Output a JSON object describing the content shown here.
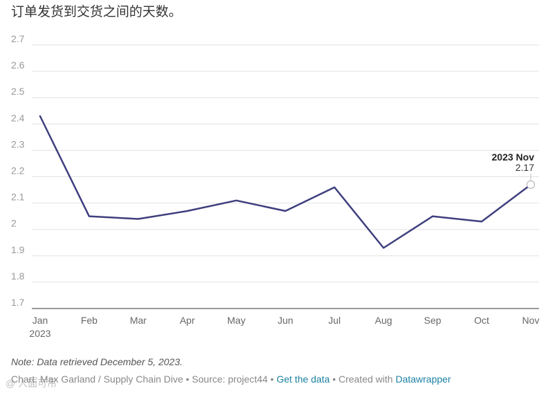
{
  "title": "订单发货到交货之间的天数。",
  "chart_data": {
    "type": "line",
    "categories": [
      "Jan",
      "Feb",
      "Mar",
      "Apr",
      "May",
      "Jun",
      "Jul",
      "Aug",
      "Sep",
      "Oct",
      "Nov"
    ],
    "year_label": "2023",
    "series": [
      {
        "values": [
          2.43,
          2.05,
          2.04,
          2.07,
          2.11,
          2.07,
          2.16,
          1.93,
          2.05,
          2.03,
          2.17
        ]
      }
    ],
    "ylim": [
      1.7,
      2.7
    ],
    "yticks": [
      "1.7",
      "1.8",
      "1.9",
      "2",
      "2.1",
      "2.2",
      "2.3",
      "2.4",
      "2.5",
      "2.6",
      "2.7"
    ],
    "annotation": {
      "label": "2023 Nov",
      "value": "2.17"
    },
    "line_color": "#3e3e7e",
    "grid": true
  },
  "footer": {
    "note": "Note: Data retrieved December 5, 2023.",
    "credits_prefix": "Chart: Max Garland / Supply Chain Dive • Source: project44 • ",
    "get_data": "Get the data",
    "created_with": " • Created with ",
    "datawrapper": "Datawrapper"
  },
  "watermark": "@ 人面可吊"
}
